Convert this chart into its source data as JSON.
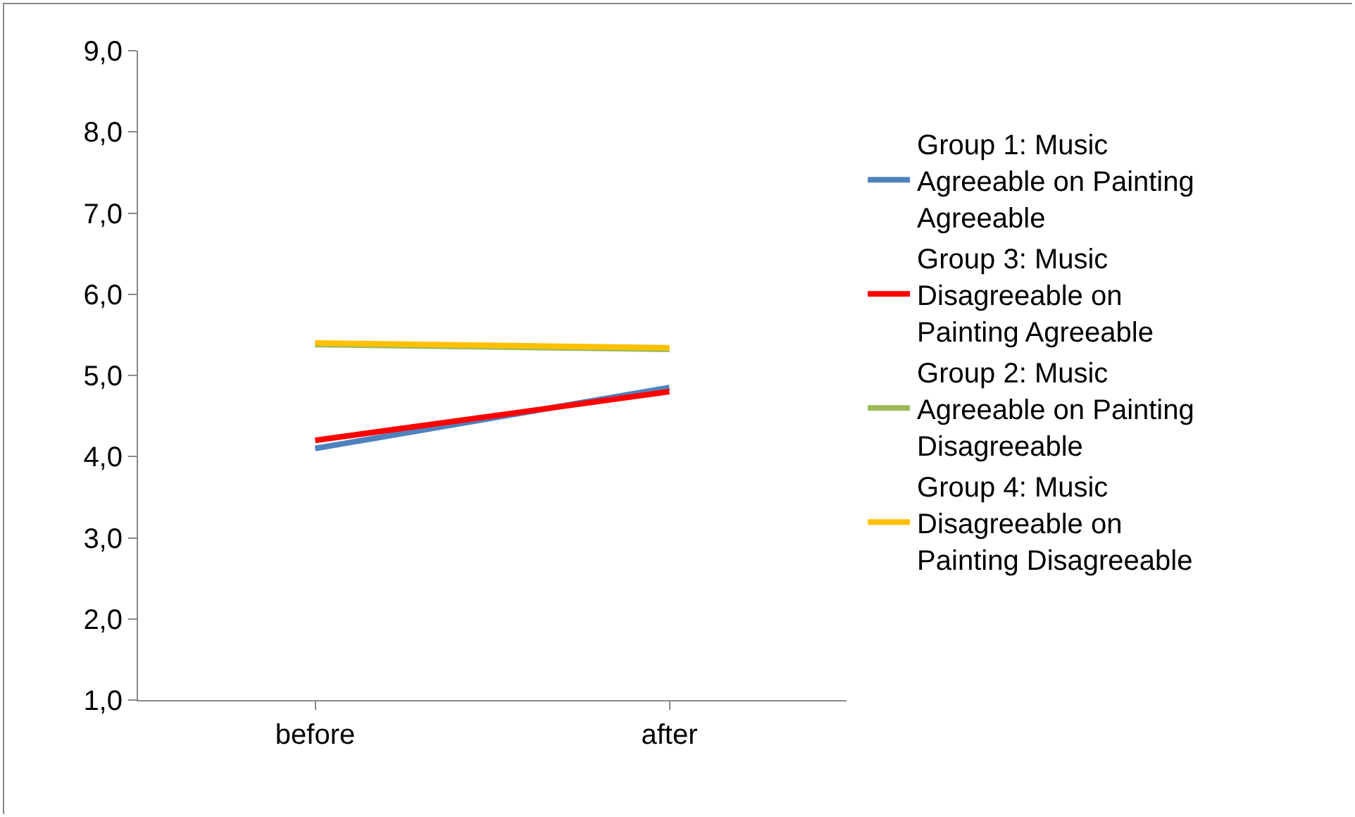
{
  "chart_data": {
    "type": "line",
    "categories": [
      "before",
      "after"
    ],
    "series": [
      {
        "name": "Group 1: Music Agreeable on Painting Agreeable",
        "color": "#4f81bd",
        "values": [
          4.1,
          4.85
        ]
      },
      {
        "name": "Group 3: Music Disagreeable on Painting Agreeable",
        "color": "#ff0000",
        "values": [
          4.2,
          4.8
        ]
      },
      {
        "name": "Group 2: Music Agreeable on Painting Disagreeable",
        "color": "#9bbb59",
        "values": [
          5.38,
          5.32
        ]
      },
      {
        "name": "Group 4: Music Disagreeable on Painting Disagreeable",
        "color": "#ffc000",
        "values": [
          5.4,
          5.34
        ]
      }
    ],
    "ylim": [
      1,
      9
    ],
    "yticks": [
      {
        "value": 1,
        "label": "1,0"
      },
      {
        "value": 2,
        "label": "2,0"
      },
      {
        "value": 3,
        "label": "3,0"
      },
      {
        "value": 4,
        "label": "4,0"
      },
      {
        "value": 5,
        "label": "5,0"
      },
      {
        "value": 6,
        "label": "6,0"
      },
      {
        "value": 7,
        "label": "7,0"
      },
      {
        "value": 8,
        "label": "8,0"
      },
      {
        "value": 9,
        "label": "9,0"
      }
    ],
    "grid": false,
    "legend": "right",
    "marker": "none",
    "line_style": "solid"
  }
}
